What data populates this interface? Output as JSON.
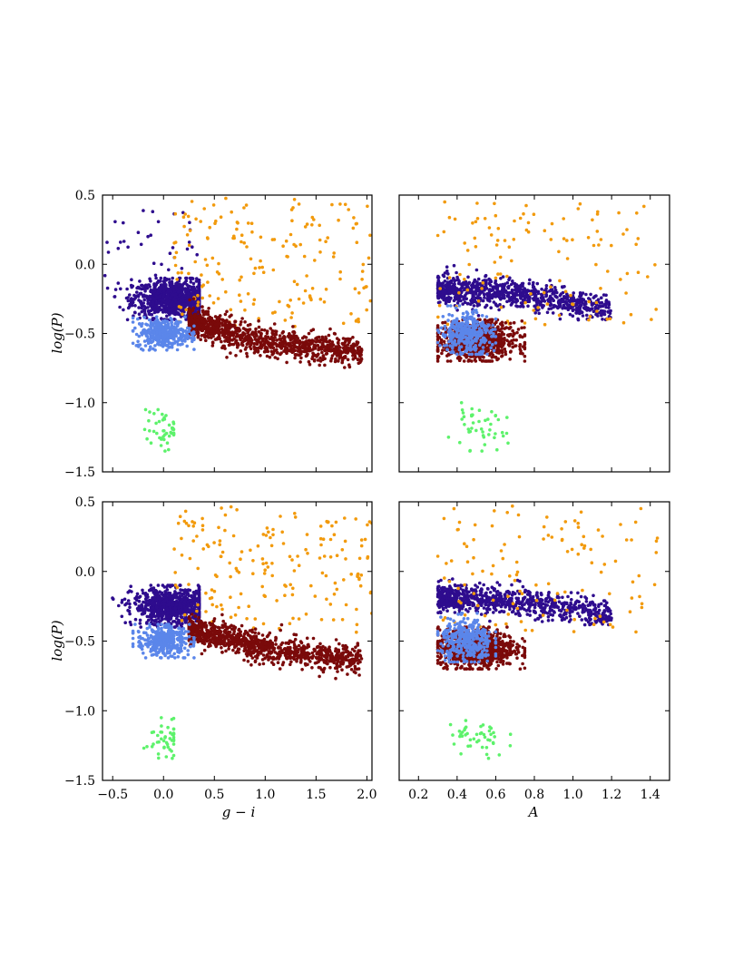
{
  "figure": {
    "colors": {
      "purple": "#2e0c8e",
      "orange": "#f29a0c",
      "darkred": "#7a0a0a",
      "lightblue": "#5b86ea",
      "green": "#5df26b"
    },
    "axis_text": {
      "ylabel": "log(P)",
      "xlabel_left": "g − i",
      "xlabel_right": "A"
    }
  },
  "chart_data": [
    {
      "type": "scatter",
      "panel": "top-left",
      "xlim": [
        -0.6,
        2.05
      ],
      "ylim": [
        -1.5,
        0.5
      ],
      "xticks": [
        -0.5,
        0.0,
        0.5,
        1.0,
        1.5,
        2.0
      ],
      "xtick_labels_shown": false,
      "yticks": [
        -1.5,
        -1.0,
        -0.5,
        0.0,
        0.5
      ],
      "ytick_labels": [
        "−1.5",
        "−1.0",
        "−0.5",
        "0.0",
        "0.5"
      ],
      "ylabel": "log(P)",
      "xlabel": "",
      "series": [
        {
          "color": "purple",
          "count": 900,
          "x_range": [
            -0.55,
            0.35
          ],
          "y_range": [
            -0.4,
            -0.1
          ],
          "center": [
            0.1,
            -0.25
          ],
          "extras_count": 40,
          "extras_x": [
            -0.6,
            0.35
          ],
          "extras_y": [
            -0.3,
            0.4
          ]
        },
        {
          "color": "orange",
          "count": 180,
          "x_range": [
            0.1,
            2.05
          ],
          "y_range": [
            -0.45,
            0.48
          ]
        },
        {
          "color": "darkred",
          "count": 1000,
          "x_range": [
            0.25,
            1.95
          ],
          "y_trend": [
            [
              0.3,
              -0.42
            ],
            [
              1.0,
              -0.56
            ],
            [
              1.9,
              -0.63
            ]
          ]
        },
        {
          "color": "lightblue",
          "count": 350,
          "x_range": [
            -0.3,
            0.3
          ],
          "y_range": [
            -0.62,
            -0.38
          ],
          "center": [
            0.0,
            -0.5
          ]
        },
        {
          "color": "green",
          "count": 45,
          "x_range": [
            -0.3,
            0.1
          ],
          "y_range": [
            -1.35,
            -1.05
          ],
          "center": [
            0.0,
            -1.2
          ]
        }
      ]
    },
    {
      "type": "scatter",
      "panel": "top-right",
      "xlim": [
        0.1,
        1.5
      ],
      "ylim": [
        -1.5,
        0.5
      ],
      "xticks": [
        0.2,
        0.4,
        0.6,
        0.8,
        1.0,
        1.2,
        1.4
      ],
      "xtick_labels_shown": false,
      "yticks": [
        -1.5,
        -1.0,
        -0.5,
        0.0,
        0.5
      ],
      "ytick_labels_shown": false,
      "series": [
        {
          "color": "purple",
          "count": 900,
          "x_range": [
            0.3,
            1.2
          ],
          "y_trend": [
            [
              0.3,
              -0.18
            ],
            [
              0.8,
              -0.23
            ],
            [
              1.2,
              -0.32
            ]
          ]
        },
        {
          "color": "orange",
          "count": 120,
          "x_range": [
            0.3,
            1.45
          ],
          "y_range": [
            -0.45,
            0.48
          ]
        },
        {
          "color": "darkred",
          "count": 900,
          "x_range": [
            0.3,
            0.75
          ],
          "y_range": [
            -0.7,
            -0.4
          ],
          "center": [
            0.5,
            -0.55
          ]
        },
        {
          "color": "lightblue",
          "count": 350,
          "x_range": [
            0.3,
            0.6
          ],
          "y_range": [
            -0.65,
            -0.3
          ],
          "center": [
            0.45,
            -0.5
          ]
        },
        {
          "color": "green",
          "count": 45,
          "x_range": [
            0.35,
            0.7
          ],
          "y_range": [
            -1.35,
            -1.0
          ],
          "center": [
            0.5,
            -1.2
          ]
        }
      ]
    },
    {
      "type": "scatter",
      "panel": "bottom-left",
      "xlim": [
        -0.6,
        2.05
      ],
      "ylim": [
        -1.5,
        0.5
      ],
      "xticks": [
        -0.5,
        0.0,
        0.5,
        1.0,
        1.5,
        2.0
      ],
      "xtick_labels": [
        "−0.5",
        "0.0",
        "0.5",
        "1.0",
        "1.5",
        "2.0"
      ],
      "yticks": [
        -1.5,
        -1.0,
        -0.5,
        0.0,
        0.5
      ],
      "ytick_labels": [
        "−1.5",
        "−1.0",
        "−0.5",
        "0.0",
        "0.5"
      ],
      "ylabel": "log(P)",
      "xlabel": "g − i",
      "series": [
        {
          "color": "purple",
          "count": 800,
          "x_range": [
            -0.55,
            0.35
          ],
          "y_range": [
            -0.4,
            -0.1
          ],
          "center": [
            0.1,
            -0.25
          ]
        },
        {
          "color": "orange",
          "count": 180,
          "x_range": [
            0.1,
            2.05
          ],
          "y_range": [
            -0.45,
            0.48
          ]
        },
        {
          "color": "darkred",
          "count": 1000,
          "x_range": [
            0.25,
            1.95
          ],
          "y_trend": [
            [
              0.3,
              -0.42
            ],
            [
              1.0,
              -0.56
            ],
            [
              1.9,
              -0.63
            ]
          ]
        },
        {
          "color": "lightblue",
          "count": 350,
          "x_range": [
            -0.3,
            0.3
          ],
          "y_range": [
            -0.62,
            -0.38
          ],
          "center": [
            0.0,
            -0.5
          ]
        },
        {
          "color": "green",
          "count": 45,
          "x_range": [
            -0.3,
            0.1
          ],
          "y_range": [
            -1.35,
            -1.05
          ],
          "center": [
            0.0,
            -1.2
          ]
        }
      ]
    },
    {
      "type": "scatter",
      "panel": "bottom-right",
      "xlim": [
        0.1,
        1.5
      ],
      "ylim": [
        -1.5,
        0.5
      ],
      "xticks": [
        0.2,
        0.4,
        0.6,
        0.8,
        1.0,
        1.2,
        1.4
      ],
      "xtick_labels": [
        "0.2",
        "0.4",
        "0.6",
        "0.8",
        "1.0",
        "1.2",
        "1.4"
      ],
      "yticks": [
        -1.5,
        -1.0,
        -0.5,
        0.0,
        0.5
      ],
      "ytick_labels_shown": false,
      "xlabel": "A",
      "series": [
        {
          "color": "purple",
          "count": 800,
          "x_range": [
            0.3,
            1.2
          ],
          "y_trend": [
            [
              0.3,
              -0.18
            ],
            [
              0.8,
              -0.23
            ],
            [
              1.2,
              -0.32
            ]
          ]
        },
        {
          "color": "orange",
          "count": 120,
          "x_range": [
            0.3,
            1.45
          ],
          "y_range": [
            -0.45,
            0.48
          ]
        },
        {
          "color": "darkred",
          "count": 900,
          "x_range": [
            0.3,
            0.75
          ],
          "y_range": [
            -0.7,
            -0.4
          ],
          "center": [
            0.5,
            -0.55
          ]
        },
        {
          "color": "lightblue",
          "count": 350,
          "x_range": [
            0.3,
            0.6
          ],
          "y_range": [
            -0.65,
            -0.3
          ],
          "center": [
            0.45,
            -0.5
          ]
        },
        {
          "color": "green",
          "count": 45,
          "x_range": [
            0.35,
            0.7
          ],
          "y_range": [
            -1.35,
            -1.0
          ],
          "center": [
            0.5,
            -1.2
          ]
        }
      ]
    }
  ]
}
